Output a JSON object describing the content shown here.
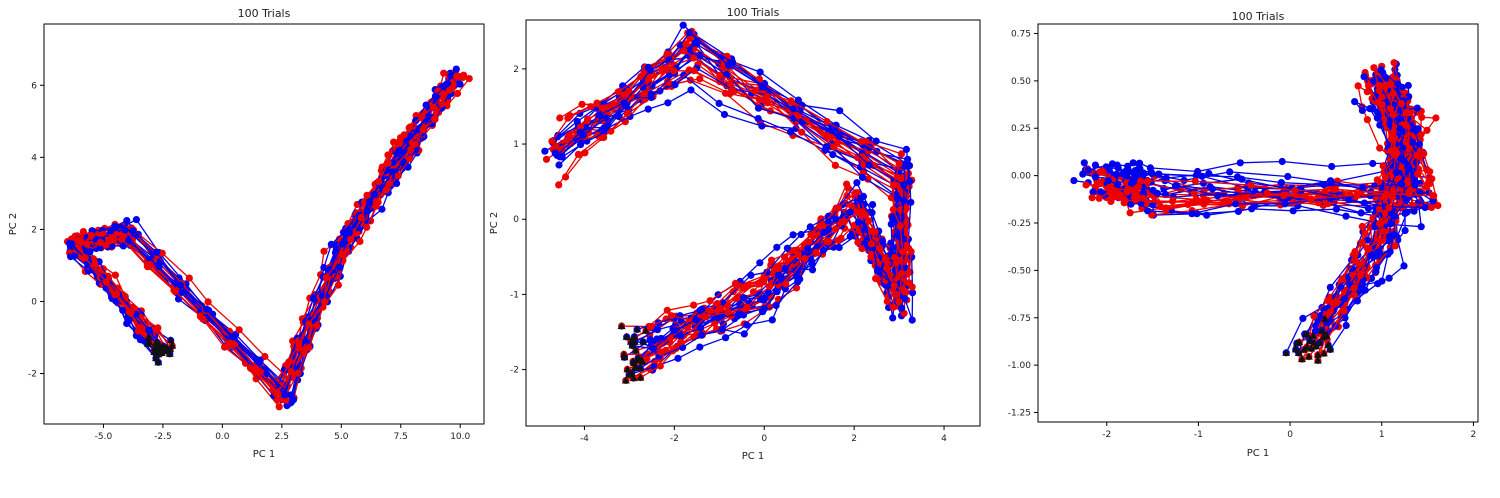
{
  "chart_data": [
    {
      "type": "scatter",
      "title": "100 Trials",
      "xlabel": "PC 1",
      "ylabel": "PC 2",
      "xlim": [
        -7.5,
        11
      ],
      "ylim": [
        -3.4,
        7.7
      ],
      "xticks": [
        -5.0,
        -2.5,
        0.0,
        2.5,
        5.0,
        7.5,
        10.0
      ],
      "xtick_labels": [
        "-5.0",
        "-2.5",
        "0.0",
        "2.5",
        "5.0",
        "7.5",
        "10.0"
      ],
      "yticks": [
        -2,
        0,
        2,
        4,
        6
      ],
      "ytick_labels": [
        "-2",
        "0",
        "2",
        "4",
        "6"
      ],
      "grid": false,
      "series": [
        {
          "color": "#0000ee",
          "marker": "circle",
          "line": true
        },
        {
          "color": "#ee0000",
          "marker": "circle",
          "line": true
        }
      ],
      "start_marker": {
        "color": "#111111",
        "marker": "triangle"
      },
      "traj_shape": {
        "start": [
          -2.6,
          -1.3
        ],
        "waypoints": [
          [
            -6.2,
            1.6
          ],
          [
            -4.0,
            1.9
          ],
          [
            2.5,
            -2.5
          ],
          [
            5.0,
            1.5
          ],
          [
            7.5,
            4.0
          ],
          [
            9.7,
            6.2
          ]
        ],
        "noise": [
          0.45,
          0.3
        ],
        "points_per_leg": 6
      }
    },
    {
      "type": "scatter",
      "title": "100 Trials",
      "xlabel": "PC 1",
      "ylabel": "PC 2",
      "xlim": [
        -5.3,
        4.8
      ],
      "ylim": [
        -2.75,
        2.65
      ],
      "xticks": [
        -4,
        -2,
        0,
        2,
        4
      ],
      "xtick_labels": [
        "-4",
        "-2",
        "0",
        "2",
        "4"
      ],
      "yticks": [
        -2,
        -1,
        0,
        1,
        2
      ],
      "ytick_labels": [
        "-2",
        "-1",
        "0",
        "1",
        "2"
      ],
      "grid": false,
      "series": [
        {
          "color": "#0000ee",
          "marker": "circle",
          "line": true
        },
        {
          "color": "#ee0000",
          "marker": "circle",
          "line": true
        }
      ],
      "start_marker": {
        "color": "#111111",
        "marker": "triangle"
      },
      "traj_shape": {
        "start": [
          -2.9,
          -1.8
        ],
        "waypoints": [
          [
            0.0,
            -1.0
          ],
          [
            2.0,
            0.2
          ],
          [
            3.0,
            -1.0
          ],
          [
            3.0,
            0.6
          ],
          [
            -1.6,
            2.1
          ],
          [
            -4.6,
            0.9
          ]
        ],
        "noise": [
          0.25,
          0.35
        ],
        "points_per_leg": 6
      }
    },
    {
      "type": "scatter",
      "title": "100 Trials",
      "xlabel": "PC 1",
      "ylabel": "",
      "xlim": [
        -2.75,
        2.05
      ],
      "ylim": [
        -1.3,
        0.8
      ],
      "xticks": [
        -2,
        -1,
        0,
        1,
        2
      ],
      "xtick_labels": [
        "-2",
        "-1",
        "0",
        "1",
        "2"
      ],
      "yticks": [
        -1.25,
        -1.0,
        -0.75,
        -0.5,
        -0.25,
        0.0,
        0.25,
        0.5,
        0.75
      ],
      "ytick_labels": [
        "-1.25",
        "-1.00",
        "-0.75",
        "-0.50",
        "-0.25",
        "0.00",
        "0.25",
        "0.50",
        "0.75"
      ],
      "grid": false,
      "series": [
        {
          "color": "#0000ee",
          "marker": "circle",
          "line": true
        },
        {
          "color": "#ee0000",
          "marker": "circle",
          "line": true
        }
      ],
      "start_marker": {
        "color": "#111111",
        "marker": "triangle"
      },
      "traj_shape": {
        "start": [
          0.25,
          -0.9
        ],
        "waypoints": [
          [
            1.0,
            -0.3
          ],
          [
            1.25,
            0.25
          ],
          [
            1.0,
            0.5
          ],
          [
            1.4,
            -0.1
          ],
          [
            -1.5,
            -0.1
          ],
          [
            -2.1,
            0.0
          ]
        ],
        "noise": [
          0.22,
          0.12
        ],
        "points_per_leg": 6
      }
    }
  ]
}
